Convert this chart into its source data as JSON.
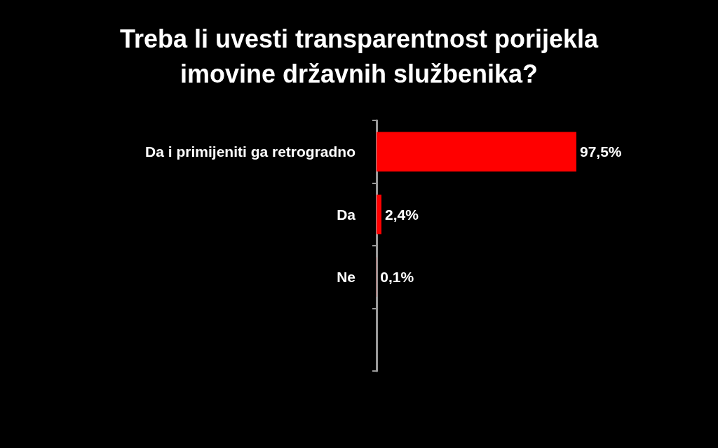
{
  "chart_data": {
    "type": "bar",
    "orientation": "horizontal",
    "title": "Treba li uvesti transparentnost porijekla\nimovine državnih službenika?",
    "categories": [
      "Da i primijeniti ga retrogradno",
      "Da",
      "Ne",
      null
    ],
    "values": [
      97.5,
      2.4,
      0.1,
      null
    ],
    "value_labels": [
      "97,5%",
      "2,4%",
      "0,1%",
      null
    ],
    "color": "#ff0000"
  }
}
